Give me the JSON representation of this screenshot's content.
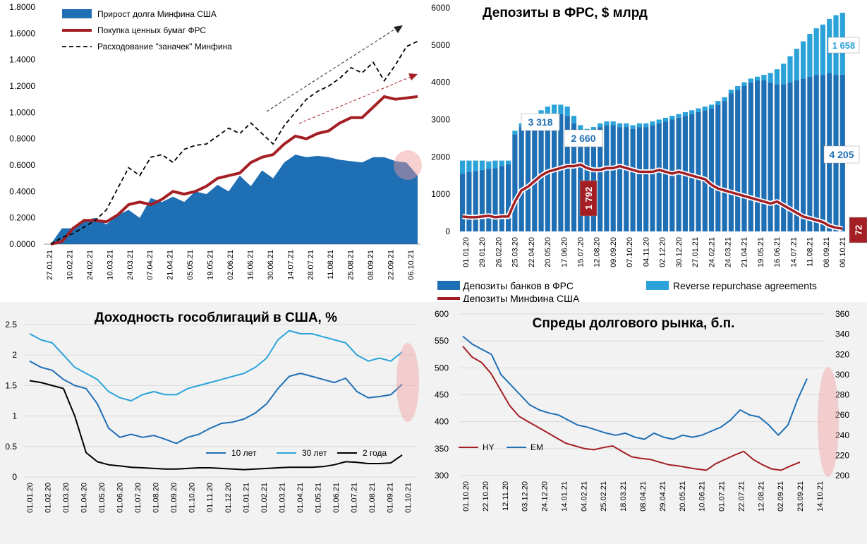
{
  "chart_data": [
    {
      "id": "p1",
      "type": "line",
      "title": "",
      "ylim": [
        0,
        1.8
      ],
      "y_ticks": [
        "0.0000",
        "0.2000",
        "0.4000",
        "0.6000",
        "0.8000",
        "1.0000",
        "1.2000",
        "1.4000",
        "1.6000",
        "1.8000"
      ],
      "x_ticks": [
        "27.01.21",
        "10.02.21",
        "24.02.21",
        "10.03.21",
        "24.03.21",
        "07.04.21",
        "21.04.21",
        "05.05.21",
        "19.05.21",
        "02.06.21",
        "16.06.21",
        "30.06.21",
        "14.07.21",
        "28.07.21",
        "11.08.21",
        "25.08.21",
        "08.09.21",
        "22.09.21",
        "06.10.21"
      ],
      "legend": [
        "Прирост долга Минфина США",
        "Покупка ценных бумаг ФРС",
        "Расходование \"заначек\" Минфина"
      ],
      "colors": {
        "area": "#1f6fb5",
        "fed": "#a31f24",
        "tga": "#000000"
      },
      "series": [
        {
          "name": "Прирост долга Минфина США",
          "style": "area",
          "values": [
            0,
            0.12,
            0.12,
            0.18,
            0.2,
            0.15,
            0.22,
            0.26,
            0.2,
            0.35,
            0.32,
            0.36,
            0.32,
            0.4,
            0.38,
            0.45,
            0.4,
            0.52,
            0.44,
            0.56,
            0.5,
            0.62,
            0.68,
            0.66,
            0.67,
            0.66,
            0.64,
            0.63,
            0.62,
            0.66,
            0.66,
            0.63,
            0.62,
            0.52
          ]
        },
        {
          "name": "Покупка ценных бумаг ФРС",
          "style": "line",
          "values": [
            0,
            0.02,
            0.12,
            0.18,
            0.18,
            0.17,
            0.22,
            0.3,
            0.32,
            0.3,
            0.34,
            0.4,
            0.38,
            0.4,
            0.44,
            0.5,
            0.52,
            0.54,
            0.62,
            0.66,
            0.68,
            0.76,
            0.82,
            0.8,
            0.84,
            0.86,
            0.92,
            0.96,
            0.96,
            1.04,
            1.12,
            1.1,
            1.11,
            1.12
          ]
        },
        {
          "name": "Расходование \"заначек\" Минфина",
          "style": "dash",
          "values": [
            0,
            0.05,
            0.08,
            0.13,
            0.18,
            0.26,
            0.42,
            0.58,
            0.52,
            0.66,
            0.68,
            0.62,
            0.72,
            0.75,
            0.76,
            0.82,
            0.88,
            0.84,
            0.92,
            0.84,
            0.76,
            0.9,
            1.0,
            1.1,
            1.16,
            1.2,
            1.26,
            1.34,
            1.3,
            1.38,
            1.24,
            1.36,
            1.5,
            1.54
          ]
        }
      ],
      "annotations": [
        "dashed-trend-arrow",
        "red-trend-arrow",
        "highlight-circle"
      ]
    },
    {
      "id": "p2",
      "type": "bar",
      "title": "Депозиты в ФРС, $ млрд",
      "ylim": [
        0,
        6000
      ],
      "y_ticks": [
        "0",
        "1000",
        "2000",
        "3000",
        "4000",
        "5000",
        "6000"
      ],
      "x_ticks": [
        "01.01.20",
        "29.01.20",
        "26.02.20",
        "25.03.20",
        "22.04.20",
        "20.05.20",
        "17.06.20",
        "15.07.20",
        "12.08.20",
        "09.09.20",
        "07.10.20",
        "04.11.20",
        "02.12.20",
        "30.12.20",
        "27.01.21",
        "24.02.21",
        "24.03.21",
        "21.04.21",
        "19.05.21",
        "16.06.21",
        "14.07.21",
        "11.08.21",
        "08.09.21",
        "06.10.21"
      ],
      "legend": [
        "Депозиты банков в ФРС",
        "Reverse repurchase agreements",
        "Депозиты Минфина США"
      ],
      "colors": {
        "banks": "#1f6fb5",
        "rrp": "#2ba3d9",
        "tga": "#a31f24"
      },
      "series": [
        {
          "name": "Депозиты банков в ФРС",
          "values": [
            1550,
            1600,
            1620,
            1650,
            1680,
            1700,
            1750,
            1800,
            2600,
            2800,
            2900,
            2950,
            3000,
            3100,
            3150,
            3150,
            3100,
            2900,
            2700,
            2650,
            2700,
            2800,
            2850,
            2850,
            2800,
            2800,
            2750,
            2800,
            2800,
            2850,
            2900,
            2950,
            3000,
            3050,
            3100,
            3150,
            3200,
            3250,
            3300,
            3400,
            3500,
            3700,
            3800,
            3900,
            4000,
            4050,
            4050,
            4000,
            3950,
            3950,
            4000,
            4050,
            4100,
            4150,
            4200,
            4200,
            4250,
            4200,
            4205
          ]
        },
        {
          "name": "Reverse repurchase agreements",
          "values": [
            350,
            300,
            280,
            250,
            200,
            200,
            150,
            100,
            100,
            100,
            150,
            200,
            250,
            250,
            250,
            250,
            250,
            200,
            150,
            100,
            100,
            100,
            100,
            100,
            100,
            100,
            100,
            100,
            100,
            100,
            100,
            100,
            100,
            100,
            100,
            100,
            100,
            100,
            100,
            100,
            100,
            100,
            100,
            100,
            100,
            100,
            150,
            250,
            400,
            550,
            700,
            850,
            1000,
            1150,
            1250,
            1350,
            1450,
            1600,
            1658
          ]
        },
        {
          "name": "Депозиты Минфина США",
          "values": [
            400,
            380,
            380,
            400,
            420,
            380,
            400,
            400,
            800,
            1100,
            1200,
            1350,
            1500,
            1600,
            1650,
            1700,
            1750,
            1750,
            1792,
            1700,
            1650,
            1650,
            1700,
            1700,
            1750,
            1700,
            1650,
            1600,
            1600,
            1600,
            1650,
            1600,
            1550,
            1600,
            1550,
            1500,
            1450,
            1400,
            1250,
            1150,
            1100,
            1050,
            1000,
            950,
            900,
            850,
            800,
            750,
            800,
            700,
            600,
            500,
            400,
            350,
            300,
            250,
            150,
            100,
            72
          ]
        }
      ],
      "labels": {
        "rrp_last": "1 658",
        "banks_last": "4 205",
        "peak_total": "3 318",
        "trough_total": "2 660",
        "tga_peak": "1 792",
        "tga_last": "72"
      }
    },
    {
      "id": "p3",
      "type": "line",
      "title": "Доходность гособлигаций в США, %",
      "ylim": [
        0,
        2.5
      ],
      "y_ticks": [
        "0",
        "0.5",
        "1",
        "1.5",
        "2",
        "2.5"
      ],
      "x_ticks": [
        "01.01.20",
        "01.02.20",
        "01.03.20",
        "01.04.20",
        "01.05.20",
        "01.06.20",
        "01.07.20",
        "01.08.20",
        "01.09.20",
        "01.10.20",
        "01.11.20",
        "01.12.20",
        "01.01.21",
        "01.02.21",
        "01.03.21",
        "01.04.21",
        "01.05.21",
        "01.06.21",
        "01.07.21",
        "01.08.21",
        "01.09.21",
        "01.10.21"
      ],
      "legend": [
        "10 лет",
        "30 лет",
        "2 года"
      ],
      "colors": {
        "y10": "#1f6fb5",
        "y30": "#2ba3d9",
        "y2": "#000000"
      },
      "series": [
        {
          "name": "10 лет",
          "values": [
            1.9,
            1.8,
            1.75,
            1.6,
            1.5,
            1.45,
            1.2,
            0.8,
            0.65,
            0.7,
            0.65,
            0.68,
            0.62,
            0.55,
            0.65,
            0.7,
            0.8,
            0.88,
            0.9,
            0.95,
            1.05,
            1.2,
            1.45,
            1.65,
            1.7,
            1.65,
            1.6,
            1.55,
            1.62,
            1.4,
            1.3,
            1.32,
            1.35,
            1.52
          ]
        },
        {
          "name": "30 лет",
          "values": [
            2.35,
            2.25,
            2.2,
            2.0,
            1.8,
            1.7,
            1.6,
            1.4,
            1.3,
            1.25,
            1.35,
            1.4,
            1.35,
            1.35,
            1.45,
            1.5,
            1.55,
            1.6,
            1.65,
            1.7,
            1.8,
            1.95,
            2.25,
            2.4,
            2.35,
            2.35,
            2.3,
            2.25,
            2.2,
            2.0,
            1.9,
            1.95,
            1.9,
            2.05
          ]
        },
        {
          "name": "2 года",
          "values": [
            1.58,
            1.55,
            1.5,
            1.45,
            1.0,
            0.4,
            0.25,
            0.2,
            0.18,
            0.16,
            0.15,
            0.14,
            0.13,
            0.13,
            0.14,
            0.15,
            0.15,
            0.14,
            0.13,
            0.12,
            0.13,
            0.14,
            0.15,
            0.16,
            0.16,
            0.16,
            0.17,
            0.2,
            0.25,
            0.24,
            0.22,
            0.22,
            0.23,
            0.36
          ]
        }
      ]
    },
    {
      "id": "p4",
      "type": "line",
      "title": "Спреды долгового рынка, б.п.",
      "ylim": [
        300,
        600
      ],
      "y2lim": [
        200,
        360
      ],
      "y_ticks": [
        "300",
        "350",
        "400",
        "450",
        "500",
        "550",
        "600"
      ],
      "y2_ticks": [
        "200",
        "220",
        "240",
        "260",
        "280",
        "300",
        "320",
        "340",
        "360"
      ],
      "x_ticks": [
        "01.10.20",
        "22.10.20",
        "12.11.20",
        "03.12.20",
        "24.12.20",
        "14.01.21",
        "04.02.21",
        "25.02.21",
        "18.03.21",
        "08.04.21",
        "29.04.21",
        "20.05.21",
        "10.06.21",
        "01.07.21",
        "22.07.21",
        "12.08.21",
        "02.09.21",
        "23.09.21",
        "14.10.21"
      ],
      "legend": [
        "HY",
        "EM"
      ],
      "colors": {
        "hy": "#a31f24",
        "em": "#1f6fb5"
      },
      "series": [
        {
          "name": "HY",
          "axis": "left",
          "values": [
            540,
            520,
            510,
            490,
            460,
            430,
            410,
            400,
            390,
            380,
            370,
            360,
            355,
            350,
            348,
            352,
            355,
            345,
            335,
            332,
            330,
            325,
            320,
            318,
            315,
            312,
            310,
            322,
            330,
            338,
            345,
            330,
            320,
            312,
            310,
            318,
            325
          ]
        },
        {
          "name": "EM",
          "axis": "right",
          "values": [
            338,
            330,
            325,
            320,
            300,
            290,
            280,
            270,
            265,
            262,
            260,
            255,
            250,
            248,
            245,
            242,
            240,
            242,
            238,
            236,
            242,
            238,
            236,
            240,
            238,
            240,
            244,
            248,
            255,
            265,
            260,
            258,
            250,
            240,
            250,
            275,
            296
          ]
        }
      ]
    }
  ]
}
